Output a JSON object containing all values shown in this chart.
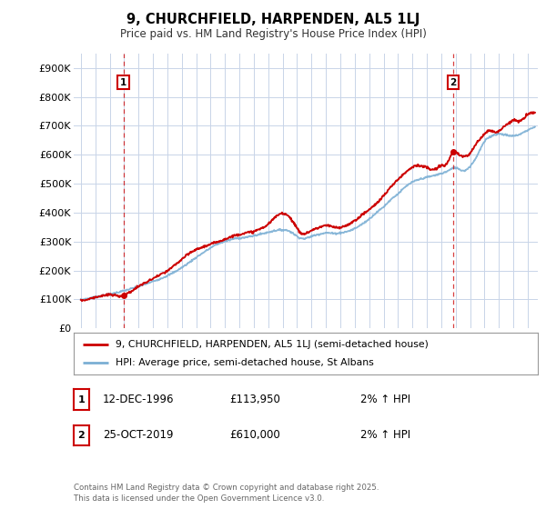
{
  "title": "9, CHURCHFIELD, HARPENDEN, AL5 1LJ",
  "subtitle": "Price paid vs. HM Land Registry's House Price Index (HPI)",
  "legend_line1": "9, CHURCHFIELD, HARPENDEN, AL5 1LJ (semi-detached house)",
  "legend_line2": "HPI: Average price, semi-detached house, St Albans",
  "annotation1_label": "1",
  "annotation1_date": "12-DEC-1996",
  "annotation1_price": "£113,950",
  "annotation1_hpi": "2% ↑ HPI",
  "annotation2_label": "2",
  "annotation2_date": "25-OCT-2019",
  "annotation2_price": "£610,000",
  "annotation2_hpi": "2% ↑ HPI",
  "footer": "Contains HM Land Registry data © Crown copyright and database right 2025.\nThis data is licensed under the Open Government Licence v3.0.",
  "sale1_year": 1996.95,
  "sale1_value": 113950,
  "sale2_year": 2019.82,
  "sale2_value": 610000,
  "vline1_year": 1996.95,
  "vline2_year": 2019.82,
  "red_line_color": "#cc0000",
  "blue_line_color": "#7bafd4",
  "vline_color": "#cc0000",
  "background_color": "#ffffff",
  "plot_bg_color": "#ffffff",
  "grid_color": "#c8d4e8",
  "ylim": [
    0,
    950000
  ],
  "xlim_start": 1993.5,
  "xlim_end": 2025.7,
  "yticks": [
    0,
    100000,
    200000,
    300000,
    400000,
    500000,
    600000,
    700000,
    800000,
    900000
  ],
  "ytick_labels": [
    "£0",
    "£100K",
    "£200K",
    "£300K",
    "£400K",
    "£500K",
    "£600K",
    "£700K",
    "£800K",
    "£900K"
  ],
  "xticks": [
    1994,
    1995,
    1996,
    1997,
    1998,
    1999,
    2000,
    2001,
    2002,
    2003,
    2004,
    2005,
    2006,
    2007,
    2008,
    2009,
    2010,
    2011,
    2012,
    2013,
    2014,
    2015,
    2016,
    2017,
    2018,
    2019,
    2020,
    2021,
    2022,
    2023,
    2024,
    2025
  ],
  "hpi_keypoints": [
    [
      1994.0,
      98000
    ],
    [
      1995.0,
      108000
    ],
    [
      1996.0,
      118000
    ],
    [
      1997.0,
      130000
    ],
    [
      1998.0,
      145000
    ],
    [
      1999.0,
      162000
    ],
    [
      2000.0,
      182000
    ],
    [
      2001.0,
      210000
    ],
    [
      2002.0,
      245000
    ],
    [
      2003.0,
      278000
    ],
    [
      2003.5,
      292000
    ],
    [
      2004.0,
      300000
    ],
    [
      2004.5,
      308000
    ],
    [
      2005.0,
      312000
    ],
    [
      2005.5,
      315000
    ],
    [
      2006.0,
      320000
    ],
    [
      2006.5,
      326000
    ],
    [
      2007.0,
      332000
    ],
    [
      2007.5,
      338000
    ],
    [
      2008.0,
      340000
    ],
    [
      2008.5,
      335000
    ],
    [
      2009.0,
      318000
    ],
    [
      2009.5,
      310000
    ],
    [
      2010.0,
      318000
    ],
    [
      2010.5,
      325000
    ],
    [
      2011.0,
      330000
    ],
    [
      2011.5,
      328000
    ],
    [
      2012.0,
      330000
    ],
    [
      2012.5,
      335000
    ],
    [
      2013.0,
      345000
    ],
    [
      2013.5,
      360000
    ],
    [
      2014.0,
      378000
    ],
    [
      2014.5,
      400000
    ],
    [
      2015.0,
      420000
    ],
    [
      2015.5,
      445000
    ],
    [
      2016.0,
      465000
    ],
    [
      2016.5,
      488000
    ],
    [
      2017.0,
      505000
    ],
    [
      2017.5,
      515000
    ],
    [
      2018.0,
      522000
    ],
    [
      2018.5,
      528000
    ],
    [
      2019.0,
      535000
    ],
    [
      2019.5,
      545000
    ],
    [
      2020.0,
      555000
    ],
    [
      2020.5,
      545000
    ],
    [
      2021.0,
      560000
    ],
    [
      2021.5,
      598000
    ],
    [
      2022.0,
      645000
    ],
    [
      2022.5,
      665000
    ],
    [
      2023.0,
      672000
    ],
    [
      2023.5,
      668000
    ],
    [
      2024.0,
      665000
    ],
    [
      2024.5,
      672000
    ],
    [
      2025.0,
      685000
    ],
    [
      2025.5,
      695000
    ]
  ],
  "red_keypoints": [
    [
      1994.0,
      98000
    ],
    [
      1994.5,
      100000
    ],
    [
      1995.0,
      108000
    ],
    [
      1995.5,
      112000
    ],
    [
      1996.0,
      116000
    ],
    [
      1996.95,
      113950
    ],
    [
      1997.0,
      115000
    ],
    [
      1997.5,
      128000
    ],
    [
      1998.0,
      145000
    ],
    [
      1998.5,
      158000
    ],
    [
      1999.0,
      172000
    ],
    [
      1999.5,
      185000
    ],
    [
      2000.0,
      198000
    ],
    [
      2000.5,
      218000
    ],
    [
      2001.0,
      238000
    ],
    [
      2001.5,
      258000
    ],
    [
      2002.0,
      272000
    ],
    [
      2002.5,
      282000
    ],
    [
      2003.0,
      290000
    ],
    [
      2003.5,
      300000
    ],
    [
      2004.0,
      308000
    ],
    [
      2004.5,
      318000
    ],
    [
      2005.0,
      325000
    ],
    [
      2005.5,
      330000
    ],
    [
      2006.0,
      335000
    ],
    [
      2006.5,
      345000
    ],
    [
      2007.0,
      360000
    ],
    [
      2007.3,
      375000
    ],
    [
      2007.7,
      392000
    ],
    [
      2008.0,
      398000
    ],
    [
      2008.3,
      392000
    ],
    [
      2008.7,
      370000
    ],
    [
      2009.0,
      345000
    ],
    [
      2009.3,
      328000
    ],
    [
      2009.7,
      330000
    ],
    [
      2010.0,
      338000
    ],
    [
      2010.5,
      348000
    ],
    [
      2011.0,
      355000
    ],
    [
      2011.5,
      350000
    ],
    [
      2012.0,
      348000
    ],
    [
      2012.5,
      358000
    ],
    [
      2013.0,
      372000
    ],
    [
      2013.5,
      392000
    ],
    [
      2014.0,
      410000
    ],
    [
      2014.5,
      432000
    ],
    [
      2015.0,
      458000
    ],
    [
      2015.5,
      488000
    ],
    [
      2016.0,
      515000
    ],
    [
      2016.5,
      538000
    ],
    [
      2017.0,
      558000
    ],
    [
      2017.5,
      562000
    ],
    [
      2018.0,
      555000
    ],
    [
      2018.5,
      548000
    ],
    [
      2019.0,
      562000
    ],
    [
      2019.5,
      578000
    ],
    [
      2019.82,
      610000
    ],
    [
      2020.0,
      608000
    ],
    [
      2020.3,
      598000
    ],
    [
      2020.7,
      595000
    ],
    [
      2021.0,
      605000
    ],
    [
      2021.3,
      628000
    ],
    [
      2021.7,
      655000
    ],
    [
      2022.0,
      672000
    ],
    [
      2022.3,
      685000
    ],
    [
      2022.7,
      678000
    ],
    [
      2023.0,
      682000
    ],
    [
      2023.3,
      695000
    ],
    [
      2023.7,
      710000
    ],
    [
      2024.0,
      720000
    ],
    [
      2024.3,
      715000
    ],
    [
      2024.7,
      725000
    ],
    [
      2025.0,
      738000
    ],
    [
      2025.5,
      745000
    ]
  ]
}
